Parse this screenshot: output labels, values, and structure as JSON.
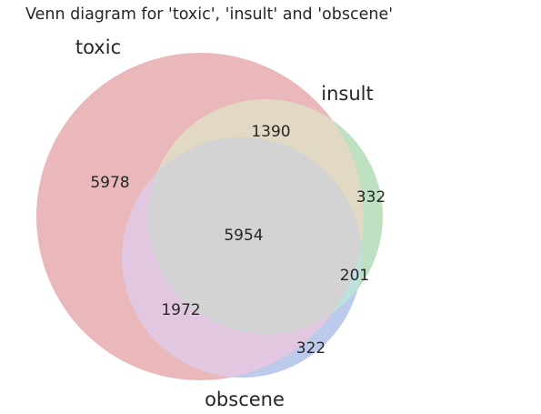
{
  "title": "Venn diagram for 'toxic', 'insult' and 'obscene'",
  "sets": [
    {
      "id": "toxic",
      "label": "toxic",
      "color": "#dd8b8f"
    },
    {
      "id": "insult",
      "label": "insult",
      "color": "#8fcb94"
    },
    {
      "id": "obscene",
      "label": "obscene",
      "color": "#8ca6dc"
    }
  ],
  "regions": [
    {
      "id": "toxic-only",
      "sets": [
        "toxic"
      ],
      "value": "5978"
    },
    {
      "id": "insult-only",
      "sets": [
        "insult"
      ],
      "value": "332"
    },
    {
      "id": "toxic-insult",
      "sets": [
        "toxic",
        "insult"
      ],
      "value": "1390"
    },
    {
      "id": "toxic-obscene",
      "sets": [
        "toxic",
        "obscene"
      ],
      "value": "1972"
    },
    {
      "id": "insult-obscene",
      "sets": [
        "insult",
        "obscene"
      ],
      "value": "201"
    },
    {
      "id": "obscene-only",
      "sets": [
        "obscene"
      ],
      "value": "322"
    },
    {
      "id": "all-three",
      "sets": [
        "toxic",
        "insult",
        "obscene"
      ],
      "value": "5954"
    }
  ]
}
